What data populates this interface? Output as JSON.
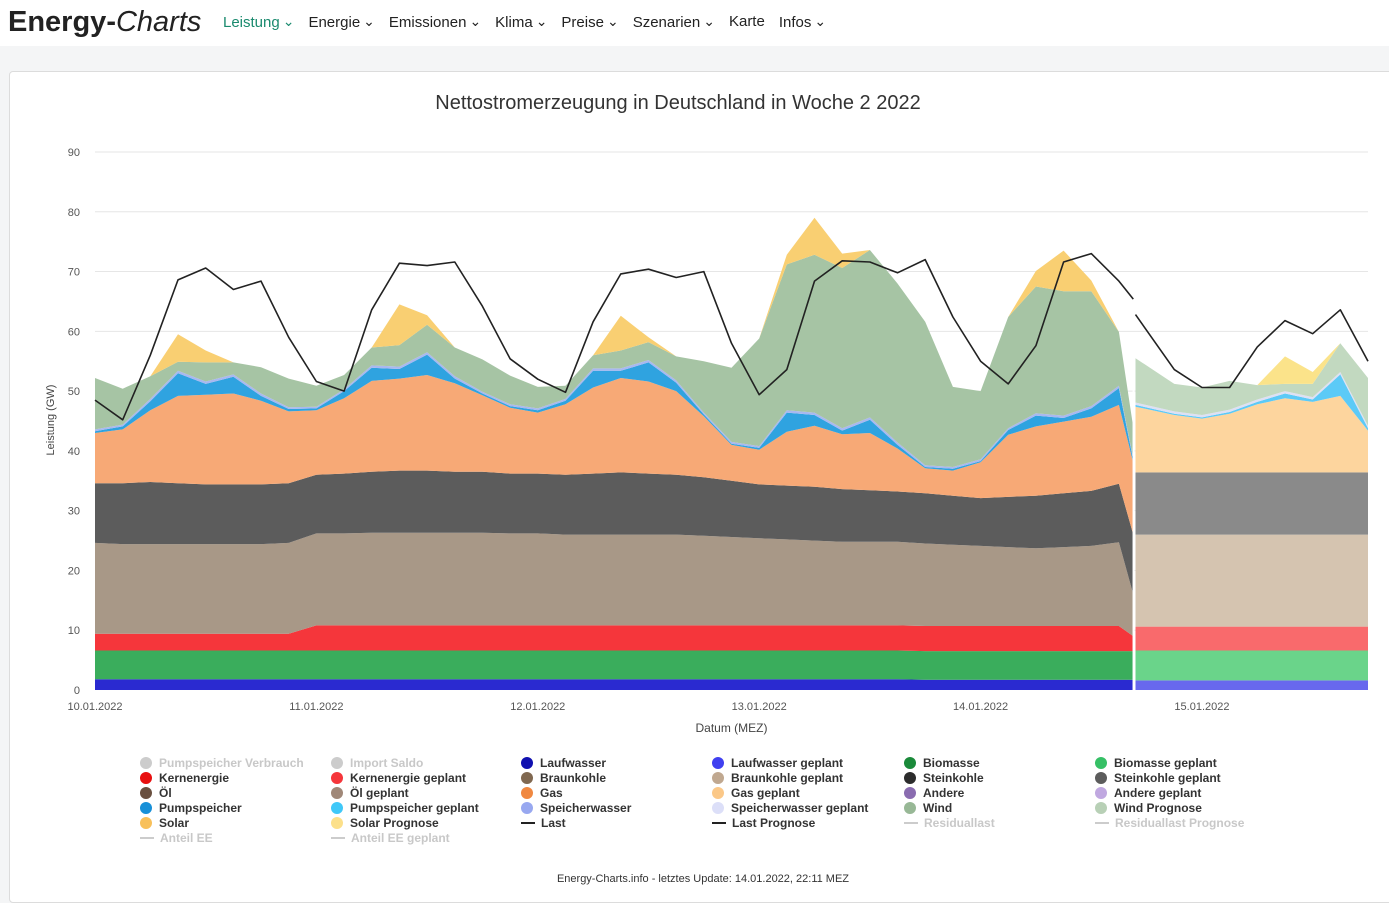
{
  "brand": {
    "part1": "Energy-",
    "part2": "Charts"
  },
  "nav": [
    {
      "label": "Leistung",
      "dropdown": true,
      "active": true
    },
    {
      "label": "Energie",
      "dropdown": true
    },
    {
      "label": "Emissionen",
      "dropdown": true
    },
    {
      "label": "Klima",
      "dropdown": true
    },
    {
      "label": "Preise",
      "dropdown": true
    },
    {
      "label": "Szenarien",
      "dropdown": true
    },
    {
      "label": "Karte",
      "dropdown": false
    },
    {
      "label": "Infos",
      "dropdown": true
    }
  ],
  "colors": {
    "accent": "#1a8a6e"
  },
  "chart_data": {
    "type": "area",
    "title": "Nettostromerzeugung in Deutschland in Woche 2 2022",
    "xlabel": "Datum (MEZ)",
    "ylabel": "Leistung (GW)",
    "ylim": [
      0,
      90
    ],
    "yticks": [
      0,
      10,
      20,
      30,
      40,
      50,
      60,
      70,
      80,
      90
    ],
    "xticks": [
      "10.01.2022",
      "11.01.2022",
      "12.01.2022",
      "13.01.2022",
      "14.01.2022",
      "15.01.2022"
    ],
    "xrange_days": [
      0,
      5.75
    ],
    "forecast_start_day": 4.7,
    "grid": true,
    "legend_position": "bottom",
    "x_days": [
      0,
      0.125,
      0.25,
      0.375,
      0.5,
      0.625,
      0.75,
      0.875,
      1,
      1.125,
      1.25,
      1.375,
      1.5,
      1.625,
      1.75,
      1.875,
      2,
      2.125,
      2.25,
      2.375,
      2.5,
      2.625,
      2.75,
      2.875,
      3,
      3.125,
      3.25,
      3.375,
      3.5,
      3.625,
      3.75,
      3.875,
      4,
      4.125,
      4.25,
      4.375,
      4.5,
      4.625,
      4.69
    ],
    "x_days_forecast": [
      4.7,
      4.875,
      5,
      5.125,
      5.25,
      5.375,
      5.5,
      5.625,
      5.75
    ],
    "series": [
      {
        "name": "Laufwasser",
        "color": "#2a2ad0",
        "values": [
          1.8,
          1.8,
          1.8,
          1.8,
          1.8,
          1.8,
          1.8,
          1.8,
          1.8,
          1.8,
          1.8,
          1.8,
          1.8,
          1.8,
          1.8,
          1.8,
          1.8,
          1.8,
          1.8,
          1.8,
          1.8,
          1.8,
          1.8,
          1.8,
          1.8,
          1.8,
          1.8,
          1.8,
          1.8,
          1.8,
          1.7,
          1.7,
          1.7,
          1.7,
          1.7,
          1.7,
          1.7,
          1.7,
          1.7
        ]
      },
      {
        "name": "Biomasse",
        "color": "#3aad5c",
        "values": [
          4.8,
          4.8,
          4.8,
          4.8,
          4.8,
          4.8,
          4.8,
          4.8,
          4.8,
          4.8,
          4.8,
          4.8,
          4.8,
          4.8,
          4.8,
          4.8,
          4.8,
          4.8,
          4.8,
          4.8,
          4.8,
          4.8,
          4.8,
          4.8,
          4.8,
          4.8,
          4.8,
          4.8,
          4.8,
          4.8,
          4.8,
          4.8,
          4.8,
          4.8,
          4.8,
          4.8,
          4.8,
          4.8,
          4.8
        ]
      },
      {
        "name": "Kernenergie",
        "color": "#f5363b",
        "values": [
          2.8,
          2.8,
          2.8,
          2.8,
          2.8,
          2.8,
          2.8,
          2.8,
          4.2,
          4.2,
          4.2,
          4.2,
          4.2,
          4.2,
          4.2,
          4.2,
          4.2,
          4.2,
          4.2,
          4.2,
          4.2,
          4.2,
          4.2,
          4.2,
          4.2,
          4.2,
          4.2,
          4.2,
          4.2,
          4.2,
          4.2,
          4.2,
          4.2,
          4.2,
          4.2,
          4.2,
          4.2,
          4.2,
          2.5
        ]
      },
      {
        "name": "Braunkohle",
        "color": "#a89887",
        "values": [
          15.2,
          15.0,
          15.0,
          15.0,
          15.0,
          15.0,
          15.0,
          15.2,
          15.4,
          15.4,
          15.5,
          15.5,
          15.5,
          15.5,
          15.5,
          15.4,
          15.4,
          15.2,
          15.2,
          15.2,
          15.2,
          15.2,
          15.0,
          14.8,
          14.6,
          14.4,
          14.2,
          14.0,
          14.0,
          14.0,
          13.8,
          13.6,
          13.4,
          13.2,
          13.0,
          13.2,
          13.4,
          14.0,
          7.0
        ]
      },
      {
        "name": "Steinkohle",
        "color": "#5c5c5c",
        "values": [
          10.0,
          10.2,
          10.4,
          10.2,
          10.0,
          10.0,
          10.0,
          10.0,
          9.8,
          10.0,
          10.2,
          10.4,
          10.4,
          10.2,
          10.2,
          10.0,
          10.0,
          10.0,
          10.2,
          10.4,
          10.2,
          10.0,
          9.8,
          9.4,
          9.0,
          9.0,
          9.0,
          8.8,
          8.6,
          8.4,
          8.4,
          8.2,
          8.0,
          8.4,
          8.8,
          9.0,
          9.2,
          9.8,
          10.0
        ]
      },
      {
        "name": "Gas",
        "color": "#f7a976",
        "values": [
          8.4,
          9.0,
          12.0,
          14.6,
          15.0,
          15.2,
          14.0,
          12.0,
          10.8,
          12.6,
          15.2,
          15.4,
          16.0,
          14.8,
          12.8,
          11.0,
          10.2,
          11.8,
          14.4,
          15.8,
          15.4,
          14.0,
          10.2,
          6.0,
          5.8,
          9.0,
          10.2,
          9.2,
          9.6,
          7.2,
          4.2,
          4.2,
          6.0,
          10.4,
          11.6,
          12.0,
          12.4,
          13.2,
          12.0
        ]
      },
      {
        "name": "Pumpspeicher",
        "color": "#2fa3e0",
        "values": [
          0.3,
          0.5,
          1.5,
          3.8,
          1.8,
          2.8,
          0.8,
          0.4,
          0.3,
          1.2,
          2.2,
          1.6,
          3.4,
          0.8,
          0.3,
          0.3,
          0.4,
          0.6,
          2.8,
          1.2,
          3.2,
          1.4,
          0.3,
          0.2,
          0.3,
          3.2,
          1.8,
          0.6,
          2.2,
          0.6,
          0.2,
          0.3,
          0.2,
          0.8,
          1.8,
          0.6,
          1.4,
          2.8,
          0.4
        ]
      },
      {
        "name": "Speicherwasser",
        "color": "#a8b8f0",
        "values": [
          0.3,
          0.3,
          0.4,
          0.4,
          0.4,
          0.4,
          0.4,
          0.3,
          0.3,
          0.3,
          0.4,
          0.4,
          0.4,
          0.4,
          0.3,
          0.3,
          0.3,
          0.3,
          0.4,
          0.4,
          0.4,
          0.4,
          0.3,
          0.3,
          0.3,
          0.4,
          0.4,
          0.4,
          0.4,
          0.4,
          0.3,
          0.3,
          0.3,
          0.3,
          0.4,
          0.4,
          0.4,
          0.4,
          0.3
        ]
      },
      {
        "name": "Wind",
        "color": "#a6c4a4",
        "values": [
          8.6,
          6.0,
          3.8,
          1.5,
          3.2,
          2.0,
          4.4,
          4.8,
          3.5,
          2.4,
          3.0,
          3.6,
          4.6,
          4.8,
          5.4,
          4.8,
          3.6,
          2.2,
          2.2,
          3.0,
          3.0,
          4.0,
          8.6,
          12.4,
          18.0,
          24.4,
          26.4,
          26.8,
          28.0,
          26.6,
          24.0,
          13.4,
          11.4,
          18.6,
          21.2,
          20.8,
          19.2,
          9.0,
          5.2
        ]
      },
      {
        "name": "Solar",
        "color": "#f9cf72",
        "values": [
          0,
          0,
          0,
          4.6,
          2.0,
          0,
          0,
          0,
          0,
          0,
          0,
          6.8,
          1.6,
          0,
          0,
          0,
          0,
          0,
          0,
          5.8,
          0.8,
          0,
          0,
          0,
          0,
          1.6,
          6.2,
          2.4,
          0,
          0,
          0,
          0,
          0,
          0,
          2.6,
          6.8,
          1.8,
          0,
          0
        ]
      },
      {
        "name": "Last",
        "color": "#222222",
        "type": "line",
        "values": [
          48.5,
          45.2,
          56.0,
          68.6,
          70.6,
          67.0,
          68.4,
          59.0,
          51.6,
          50.0,
          63.6,
          71.4,
          71.0,
          71.6,
          64.2,
          55.4,
          52.0,
          49.8,
          61.6,
          69.6,
          70.4,
          69.0,
          70.0,
          58.0,
          49.4,
          53.6,
          68.4,
          71.8,
          71.6,
          69.8,
          72.0,
          62.4,
          55.0,
          51.2,
          57.6,
          71.6,
          73.0,
          68.4,
          65.4
        ]
      },
      {
        "name": "Biomasse geplant",
        "color": "#6ad48a",
        "forecast": true,
        "values": [
          5.0,
          5.0,
          5.0,
          5.0,
          5.0,
          5.0,
          5.0,
          5.0,
          5.0
        ]
      },
      {
        "name": "Laufwasser geplant",
        "color": "#6868ee",
        "forecast": true,
        "values": [
          1.6,
          1.6,
          1.6,
          1.6,
          1.6,
          1.6,
          1.6,
          1.6,
          1.6
        ]
      },
      {
        "name": "Kernenergie geplant",
        "color": "#f96a6c",
        "forecast": true,
        "values": [
          4.0,
          4.0,
          4.0,
          4.0,
          4.0,
          4.0,
          4.0,
          4.0,
          4.0
        ]
      },
      {
        "name": "Braunkohle geplant",
        "color": "#d5c4b0",
        "forecast": true,
        "values": [
          15.4,
          15.4,
          15.4,
          15.4,
          15.4,
          15.4,
          15.4,
          15.4,
          15.4
        ]
      },
      {
        "name": "Steinkohle geplant",
        "color": "#8a8a8a",
        "forecast": true,
        "values": [
          10.4,
          10.4,
          10.4,
          10.4,
          10.4,
          10.4,
          10.4,
          10.4,
          10.4
        ]
      },
      {
        "name": "Gas geplant",
        "color": "#fdd59e",
        "forecast": true,
        "values": [
          11.0,
          9.6,
          9.0,
          9.8,
          11.4,
          12.4,
          11.8,
          12.8,
          7.0
        ]
      },
      {
        "name": "Pumpspeicher geplant",
        "color": "#5ccaf7",
        "forecast": true,
        "values": [
          0.3,
          0.2,
          0.2,
          0.3,
          0.4,
          0.8,
          0.4,
          3.6,
          0.4
        ]
      },
      {
        "name": "Speicherwasser geplant",
        "color": "#dde0f4",
        "forecast": true,
        "values": [
          0.4,
          0.4,
          0.4,
          0.4,
          0.4,
          0.4,
          0.4,
          0.4,
          0.4
        ]
      },
      {
        "name": "Wind Prognose",
        "color": "#c2d9c0",
        "forecast": true,
        "values": [
          7.4,
          4.6,
          4.6,
          4.8,
          2.4,
          1.2,
          2.2,
          4.8,
          8.0
        ]
      },
      {
        "name": "Solar Prognose",
        "color": "#fbe38a",
        "forecast": true,
        "values": [
          0,
          0,
          0,
          0,
          0,
          4.6,
          2.0,
          0,
          0
        ]
      },
      {
        "name": "Last Prognose",
        "color": "#222222",
        "type": "line",
        "forecast": true,
        "values": [
          62.8,
          53.6,
          50.6,
          50.6,
          57.4,
          61.8,
          59.6,
          63.6,
          55.0
        ]
      }
    ]
  },
  "legend": [
    {
      "label": "Pumpspeicher Verbrauch",
      "color": "#cccccc",
      "type": "dot",
      "off": true
    },
    {
      "label": "Import Saldo",
      "color": "#cccccc",
      "type": "dot",
      "off": true
    },
    {
      "label": "Laufwasser",
      "color": "#1010b0",
      "type": "dot"
    },
    {
      "label": "Laufwasser geplant",
      "color": "#4040f0",
      "type": "dot"
    },
    {
      "label": "Biomasse",
      "color": "#1a8a3a",
      "type": "dot"
    },
    {
      "label": "Biomasse geplant",
      "color": "#36c066",
      "type": "dot"
    },
    {
      "label": "Kernenergie",
      "color": "#e81010",
      "type": "dot"
    },
    {
      "label": "Kernenergie geplant",
      "color": "#f5363b",
      "type": "dot"
    },
    {
      "label": "Braunkohle",
      "color": "#806850",
      "type": "dot"
    },
    {
      "label": "Braunkohle geplant",
      "color": "#c0a890",
      "type": "dot"
    },
    {
      "label": "Steinkohle",
      "color": "#2c2c2c",
      "type": "dot"
    },
    {
      "label": "Steinkohle geplant",
      "color": "#5c5c5c",
      "type": "dot"
    },
    {
      "label": "Öl",
      "color": "#6a5040",
      "type": "dot"
    },
    {
      "label": "Öl geplant",
      "color": "#a08878",
      "type": "dot"
    },
    {
      "label": "Gas",
      "color": "#f08840",
      "type": "dot"
    },
    {
      "label": "Gas geplant",
      "color": "#fbc888",
      "type": "dot"
    },
    {
      "label": "Andere",
      "color": "#8a6cb0",
      "type": "dot"
    },
    {
      "label": "Andere geplant",
      "color": "#c0a8e0",
      "type": "dot"
    },
    {
      "label": "Pumpspeicher",
      "color": "#1890d8",
      "type": "dot"
    },
    {
      "label": "Pumpspeicher geplant",
      "color": "#40c8f8",
      "type": "dot"
    },
    {
      "label": "Speicherwasser",
      "color": "#98a8f0",
      "type": "dot"
    },
    {
      "label": "Speicherwasser geplant",
      "color": "#dcdff8",
      "type": "dot"
    },
    {
      "label": "Wind",
      "color": "#98b896",
      "type": "dot"
    },
    {
      "label": "Wind Prognose",
      "color": "#b8d0b6",
      "type": "dot"
    },
    {
      "label": "Solar",
      "color": "#f8c05a",
      "type": "dot"
    },
    {
      "label": "Solar Prognose",
      "color": "#fce08a",
      "type": "dot"
    },
    {
      "label": "Last",
      "color": "#222222",
      "type": "line"
    },
    {
      "label": "Last Prognose",
      "color": "#222222",
      "type": "line"
    },
    {
      "label": "Residuallast",
      "color": "#cccccc",
      "type": "line",
      "off": true
    },
    {
      "label": "Residuallast Prognose",
      "color": "#cccccc",
      "type": "line",
      "off": true
    },
    {
      "label": "Anteil EE",
      "color": "#cccccc",
      "type": "line",
      "off": true
    },
    {
      "label": "Anteil EE geplant",
      "color": "#cccccc",
      "type": "line",
      "off": true
    }
  ],
  "footer": "Energy-Charts.info - letztes Update: 14.01.2022, 22:11 MEZ"
}
